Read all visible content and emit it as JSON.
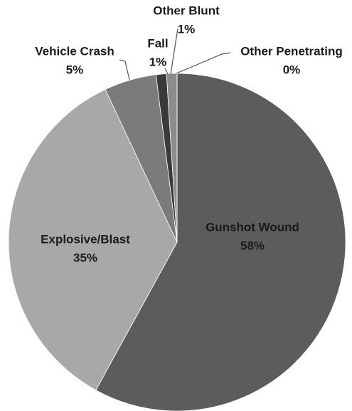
{
  "chart_data": {
    "type": "pie",
    "categories": [
      "Gunshot Wound",
      "Explosive/Blast",
      "Vehicle Crash",
      "Fall",
      "Other Blunt",
      "Other Penetrating"
    ],
    "values": [
      58,
      35,
      5,
      1,
      1,
      0
    ],
    "value_labels": [
      "58%",
      "35%",
      "5%",
      "1%",
      "1%",
      "0%"
    ],
    "colors": [
      "#5c5c5c",
      "#a8a8a8",
      "#7b7b7b",
      "#3a3a3a",
      "#8c8c8c",
      "#d4d4d4"
    ]
  }
}
